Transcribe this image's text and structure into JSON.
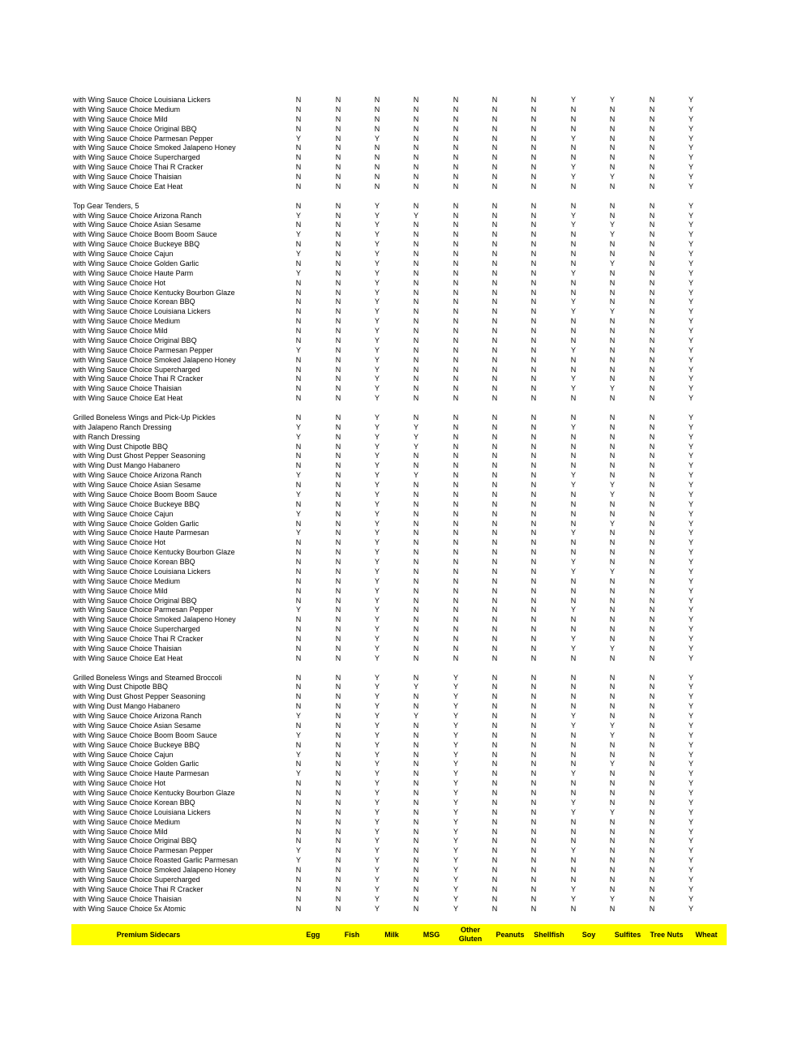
{
  "header": {
    "title": "Premium Sidecars",
    "columns": [
      "Egg",
      "Fish",
      "Milk",
      "MSG",
      "Other Gluten",
      "Peanuts",
      "Shellfish",
      "Soy",
      "Sulfites",
      "Tree Nuts",
      "Wheat"
    ],
    "background_color": "#ffff00"
  },
  "groups": [
    {
      "rows": [
        {
          "name": "with Wing Sauce Choice Louisiana Lickers",
          "v": "NNNNNNNYYNY"
        },
        {
          "name": "with Wing Sauce Choice Medium",
          "v": "NNNNNNNNNNY"
        },
        {
          "name": "with Wing Sauce Choice Mild",
          "v": "NNNNNNNNNNY"
        },
        {
          "name": "with Wing Sauce Choice Original BBQ",
          "v": "NNNNNNNNNNY"
        },
        {
          "name": "with Wing Sauce Choice Parmesan Pepper",
          "v": "YNYNNNNYNNY"
        },
        {
          "name": "with Wing Sauce Choice Smoked Jalapeno Honey",
          "v": "NNNNNNNNNNY"
        },
        {
          "name": "with Wing Sauce Choice Supercharged",
          "v": "NNNNNNNNNNY"
        },
        {
          "name": "with Wing Sauce Choice Thai R Cracker",
          "v": "NNNNNNNYNNY"
        },
        {
          "name": "with Wing Sauce Choice Thaisian",
          "v": "NNNNNNNYYNY"
        },
        {
          "name": "with Wing Sauce Choice Eat Heat",
          "v": "NNNNNNNNNNY"
        }
      ]
    },
    {
      "rows": [
        {
          "name": "Top Gear Tenders, 5",
          "v": "NNYNNNNNNNY"
        },
        {
          "name": "with Wing Sauce Choice Arizona Ranch",
          "v": "YNYYNNNYNNY"
        },
        {
          "name": "with Wing Sauce Choice Asian Sesame",
          "v": "NNYNNNNYYNY"
        },
        {
          "name": "with Wing Sauce Choice Boom Boom Sauce",
          "v": "YNYNNNNNYNY"
        },
        {
          "name": "with Wing Sauce Choice Buckeye BBQ",
          "v": "NNYNNNNNNNY"
        },
        {
          "name": "with Wing Sauce Choice Cajun",
          "v": "YNYNNNNNNNY"
        },
        {
          "name": "with Wing Sauce Choice Golden Garlic",
          "v": "NNYNNNNNYNY"
        },
        {
          "name": "with Wing Sauce Choice Haute Parm",
          "v": "YNYNNNNYNNY"
        },
        {
          "name": "with Wing Sauce Choice Hot",
          "v": "NNYNNNNNNNY"
        },
        {
          "name": "with Wing Sauce Choice Kentucky Bourbon Glaze",
          "v": "NNYNNNNNNNY"
        },
        {
          "name": "with Wing Sauce Choice Korean BBQ",
          "v": "NNYNNNNYNNY"
        },
        {
          "name": "with Wing Sauce Choice Louisiana Lickers",
          "v": "NNYNNNNYYNY"
        },
        {
          "name": "with Wing Sauce Choice Medium",
          "v": "NNYNNNNNNNY"
        },
        {
          "name": "with Wing Sauce Choice Mild",
          "v": "NNYNNNNNNNY"
        },
        {
          "name": "with Wing Sauce Choice Original BBQ",
          "v": "NNYNNNNNNNY"
        },
        {
          "name": "with Wing Sauce Choice Parmesan Pepper",
          "v": "YNYNNNNYNNY"
        },
        {
          "name": "with Wing Sauce Choice Smoked Jalapeno Honey",
          "v": "NNYNNNNNNNY"
        },
        {
          "name": "with Wing Sauce Choice Supercharged",
          "v": "NNYNNNNNNNY"
        },
        {
          "name": "with Wing Sauce Choice Thai R Cracker",
          "v": "NNYNNNNYNNY"
        },
        {
          "name": "with Wing Sauce Choice Thaisian",
          "v": "NNYNNNNYYNY"
        },
        {
          "name": "with Wing Sauce Choice Eat Heat",
          "v": "NNYNNNNNNNY"
        }
      ]
    },
    {
      "rows": [
        {
          "name": "Grilled Boneless Wings and Pick-Up Pickles",
          "v": "NNYNNNNNNNY"
        },
        {
          "name": "with Jalapeno Ranch Dressing",
          "v": "YNYYNNNYNNY"
        },
        {
          "name": "with Ranch Dressing",
          "v": "YNYYNNNNNNY"
        },
        {
          "name": "with Wing Dust Chipotle BBQ",
          "v": "NNYYNNNNNNY"
        },
        {
          "name": "with Wing Dust Ghost Pepper Seasoning",
          "v": "NNYNNNNNNNY"
        },
        {
          "name": "with Wing Dust Mango Habanero",
          "v": "NNYNNNNNNNY"
        },
        {
          "name": "with Wing Sauce Choice Arizona Ranch",
          "v": "YNYYNNNYNNY"
        },
        {
          "name": "with Wing Sauce Choice Asian Sesame",
          "v": "NNYNNNNYYNY"
        },
        {
          "name": "with Wing Sauce Choice Boom Boom Sauce",
          "v": "YNYNNNNNYNY"
        },
        {
          "name": "with Wing Sauce Choice Buckeye BBQ",
          "v": "NNYNNNNNNNY"
        },
        {
          "name": "with Wing Sauce Choice Cajun",
          "v": "YNYNNNNNNNY"
        },
        {
          "name": "with Wing Sauce Choice Golden Garlic",
          "v": "NNYNNNNNYNY"
        },
        {
          "name": "with Wing Sauce Choice Haute Parmesan",
          "v": "YNYNNNNYNNY"
        },
        {
          "name": "with Wing Sauce Choice Hot",
          "v": "NNYNNNNNNNY"
        },
        {
          "name": "with Wing Sauce Choice Kentucky Bourbon Glaze",
          "v": "NNYNNNNNNNY"
        },
        {
          "name": "with Wing Sauce Choice Korean BBQ",
          "v": "NNYNNNNYNNY"
        },
        {
          "name": "with Wing Sauce Choice Louisiana Lickers",
          "v": "NNYNNNNYYNY"
        },
        {
          "name": "with Wing Sauce Choice Medium",
          "v": "NNYNNNNNNNY"
        },
        {
          "name": "with Wing Sauce Choice Mild",
          "v": "NNYNNNNNNNY"
        },
        {
          "name": "with Wing Sauce Choice Original BBQ",
          "v": "NNYNNNNNNNY"
        },
        {
          "name": "with Wing Sauce Choice Parmesan Pepper",
          "v": "YNYNNNNYNNY"
        },
        {
          "name": "with Wing Sauce Choice Smoked Jalapeno Honey",
          "v": "NNYNNNNNNNY"
        },
        {
          "name": "with Wing Sauce Choice Supercharged",
          "v": "NNYNNNNNNNY"
        },
        {
          "name": "with Wing Sauce Choice Thai R Cracker",
          "v": "NNYNNNNYNNY"
        },
        {
          "name": "with Wing Sauce Choice Thaisian",
          "v": "NNYNNNNYYNY"
        },
        {
          "name": "with Wing Sauce Choice Eat Heat",
          "v": "NNYNNNNNNNY"
        }
      ]
    },
    {
      "rows": [
        {
          "name": "Grilled Boneless Wings and Steamed Broccoli",
          "v": "NNYNYNNNNNY"
        },
        {
          "name": "with Wing Dust Chipotle BBQ",
          "v": "NNYYYNNNNNY"
        },
        {
          "name": "with Wing Dust Ghost Pepper Seasoning",
          "v": "NNYNYNNNNNY"
        },
        {
          "name": "with Wing Dust Mango Habanero",
          "v": "NNYNYNNNNNY"
        },
        {
          "name": "with Wing Sauce Choice Arizona Ranch",
          "v": "YNYYYNNYNNY"
        },
        {
          "name": "with Wing Sauce Choice Asian Sesame",
          "v": "NNYNYNNYYNY"
        },
        {
          "name": "with Wing Sauce Choice Boom Boom Sauce",
          "v": "YNYNYNNNYNY"
        },
        {
          "name": "with Wing Sauce Choice Buckeye BBQ",
          "v": "NNYNYNNNNNY"
        },
        {
          "name": "with Wing Sauce Choice Cajun",
          "v": "YNYNYNNNNNY"
        },
        {
          "name": "with Wing Sauce Choice Golden Garlic",
          "v": "NNYNYNNNYNY"
        },
        {
          "name": "with Wing Sauce Choice Haute Parmesan",
          "v": "YNYNYNNYNNY"
        },
        {
          "name": "with Wing Sauce Choice Hot",
          "v": "NNYNYNNNNNY"
        },
        {
          "name": "with Wing Sauce Choice Kentucky Bourbon Glaze",
          "v": "NNYNYNNNNNY"
        },
        {
          "name": "with Wing Sauce Choice Korean BBQ",
          "v": "NNYNYNNYNNY"
        },
        {
          "name": "with Wing Sauce Choice Louisiana Lickers",
          "v": "NNYNYNNYYNY"
        },
        {
          "name": "with Wing Sauce Choice Medium",
          "v": "NNYNYNNNNNY"
        },
        {
          "name": "with Wing Sauce Choice Mild",
          "v": "NNYNYNNNNNY"
        },
        {
          "name": "with Wing Sauce Choice Original BBQ",
          "v": "NNYNYNNNNNY"
        },
        {
          "name": "with Wing Sauce Choice Parmesan Pepper",
          "v": "YNYNYNNYNNY"
        },
        {
          "name": "with Wing Sauce Choice Roasted Garlic Parmesan",
          "v": "YNYNYNNNNNY"
        },
        {
          "name": "with Wing Sauce Choice Smoked Jalapeno Honey",
          "v": "NNYNYNNNNNY"
        },
        {
          "name": "with Wing Sauce Choice Supercharged",
          "v": "NNYNYNNNNNY"
        },
        {
          "name": "with Wing Sauce Choice Thai R Cracker",
          "v": "NNYNYNNYNNY"
        },
        {
          "name": "with Wing Sauce Choice Thaisian",
          "v": "NNYNYNNYYNY"
        },
        {
          "name": "with Wing Sauce Choice 5x Atomic",
          "v": "NNYNYNNNNNY"
        }
      ]
    }
  ]
}
